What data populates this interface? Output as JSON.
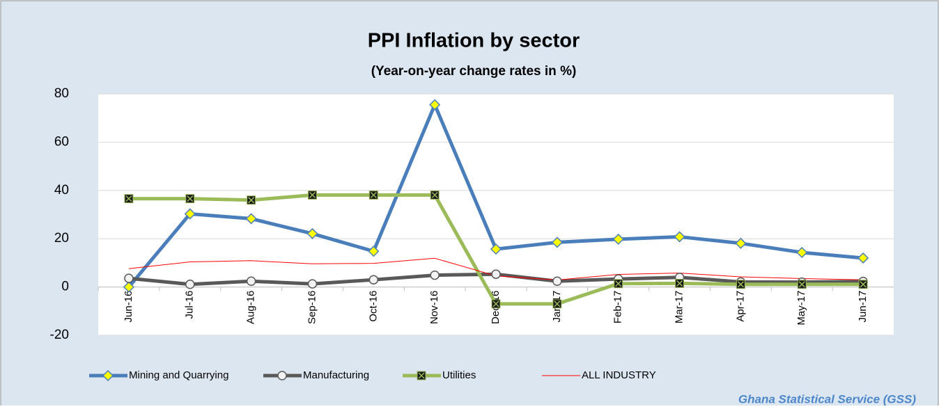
{
  "chart_data": {
    "type": "line",
    "title": "PPI Inflation by sector",
    "subtitle": "(Year-on-year change rates in %)",
    "source": "Ghana Statistical Service (GSS)",
    "categories": [
      "Jun-16",
      "Jul-16",
      "Aug-16",
      "Sep-16",
      "Oct-16",
      "Nov-16",
      "Dec-16",
      "Jan-17",
      "Feb-17",
      "Mar-17",
      "Apr-17",
      "May-17",
      "Jun-17"
    ],
    "series": [
      {
        "name": "Mining and Quarrying",
        "color": "#4a7ebb",
        "marker": "diamond",
        "values": [
          0,
          30.3,
          28.3,
          22.1,
          14.8,
          75.5,
          15.7,
          18.5,
          19.8,
          20.8,
          18.1,
          14.3,
          12.0
        ]
      },
      {
        "name": "Manufacturing",
        "color": "#595959",
        "marker": "circle",
        "values": [
          3.6,
          1.1,
          2.4,
          1.3,
          3.0,
          4.9,
          5.3,
          2.4,
          3.3,
          4.0,
          2.1,
          2.0,
          2.3
        ]
      },
      {
        "name": "Utilities",
        "color": "#9bbb59",
        "marker": "square",
        "values": [
          36.6,
          36.6,
          36.0,
          38.1,
          38.1,
          38.1,
          -7.0,
          -7.0,
          1.4,
          1.5,
          1.1,
          1.1,
          1.1
        ]
      },
      {
        "name": "ALL INDUSTRY",
        "color": "#ff0000",
        "marker": "none",
        "values": [
          7.6,
          10.4,
          10.9,
          9.6,
          9.8,
          11.9,
          4.6,
          2.9,
          5.2,
          5.8,
          4.2,
          3.5,
          3.0
        ]
      }
    ],
    "ylim": [
      -20,
      80
    ],
    "yticks": [
      -20,
      0,
      20,
      40,
      60,
      80
    ],
    "grid": true,
    "legend": "bottom"
  }
}
